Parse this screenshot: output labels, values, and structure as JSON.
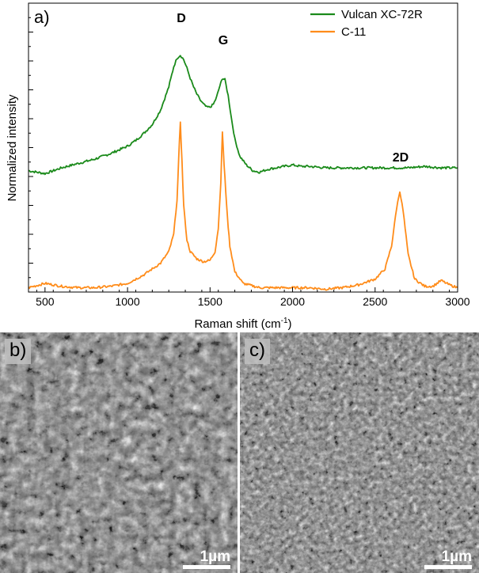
{
  "panel_a": {
    "label": "a)",
    "peak_labels": {
      "d": "D",
      "g": "G",
      "two_d": "2D"
    }
  },
  "panel_b": {
    "label": "b)",
    "scale_bar": "1µm"
  },
  "panel_c": {
    "label": "c)",
    "scale_bar": "1µm"
  },
  "chart_data": {
    "type": "line",
    "xlabel": "Raman shift (cm",
    "xlabel_superscript": "-1",
    "xlabel_suffix": ")",
    "ylabel": "Normalized intensity",
    "xlim": [
      400,
      3000
    ],
    "ylim": [
      0,
      1
    ],
    "x_ticks": [
      500,
      1000,
      1500,
      2000,
      2500,
      3000
    ],
    "y_tick_labels": false,
    "legend_position": "top-right",
    "series": [
      {
        "name": "Vulcan XC-72R",
        "color": "#1a8a1a",
        "x": [
          400,
          500,
          600,
          700,
          800,
          900,
          1000,
          1050,
          1100,
          1150,
          1200,
          1250,
          1280,
          1300,
          1320,
          1340,
          1360,
          1380,
          1400,
          1420,
          1440,
          1460,
          1480,
          1500,
          1520,
          1540,
          1560,
          1575,
          1590,
          1610,
          1630,
          1650,
          1680,
          1720,
          1760,
          1800,
          1850,
          1900,
          1950,
          2000,
          2050,
          2100,
          2200,
          2300,
          2400,
          2500,
          2600,
          2700,
          2800,
          2900,
          3000
        ],
        "y": [
          0.42,
          0.41,
          0.43,
          0.445,
          0.46,
          0.48,
          0.505,
          0.525,
          0.55,
          0.58,
          0.63,
          0.71,
          0.78,
          0.81,
          0.82,
          0.805,
          0.775,
          0.74,
          0.71,
          0.685,
          0.665,
          0.65,
          0.64,
          0.64,
          0.65,
          0.675,
          0.715,
          0.74,
          0.735,
          0.68,
          0.6,
          0.53,
          0.47,
          0.44,
          0.42,
          0.415,
          0.425,
          0.43,
          0.435,
          0.44,
          0.435,
          0.435,
          0.43,
          0.43,
          0.43,
          0.43,
          0.43,
          0.43,
          0.435,
          0.43,
          0.43
        ]
      },
      {
        "name": "C-11",
        "color": "#ff8c1a",
        "x": [
          400,
          500,
          600,
          700,
          800,
          900,
          1000,
          1100,
          1150,
          1200,
          1250,
          1280,
          1300,
          1310,
          1320,
          1330,
          1340,
          1360,
          1380,
          1420,
          1460,
          1500,
          1530,
          1550,
          1565,
          1575,
          1585,
          1595,
          1605,
          1620,
          1650,
          1700,
          1800,
          1900,
          2000,
          2100,
          2200,
          2300,
          2400,
          2500,
          2560,
          2600,
          2630,
          2650,
          2670,
          2700,
          2740,
          2800,
          2850,
          2900,
          2950,
          3000
        ],
        "y": [
          0.015,
          0.03,
          0.02,
          0.015,
          0.015,
          0.02,
          0.03,
          0.06,
          0.08,
          0.1,
          0.14,
          0.2,
          0.32,
          0.46,
          0.59,
          0.45,
          0.3,
          0.18,
          0.14,
          0.115,
          0.105,
          0.11,
          0.14,
          0.22,
          0.38,
          0.555,
          0.44,
          0.35,
          0.26,
          0.16,
          0.07,
          0.03,
          0.015,
          0.015,
          0.015,
          0.015,
          0.01,
          0.015,
          0.025,
          0.045,
          0.08,
          0.16,
          0.29,
          0.35,
          0.28,
          0.13,
          0.045,
          0.02,
          0.02,
          0.04,
          0.025,
          0.015
        ]
      }
    ]
  }
}
